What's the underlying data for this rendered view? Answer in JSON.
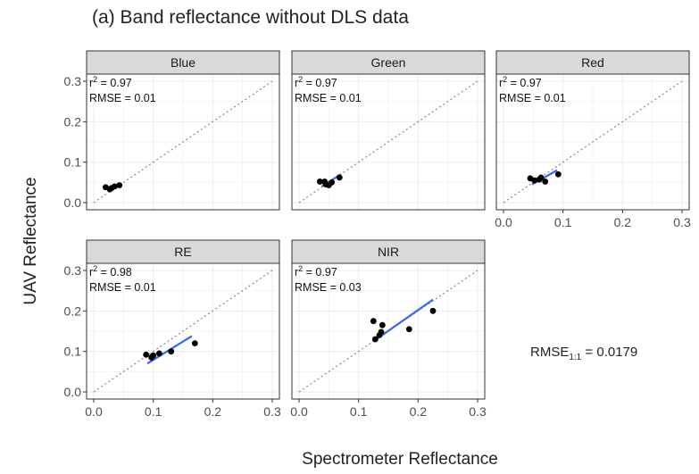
{
  "figure": {
    "title": "(a) Band reflectance without DLS data",
    "xlabel": "Spectrometer Reflectance",
    "ylabel": "UAV Reflectance",
    "overall_rmse_label": "RMSE",
    "overall_rmse_subscript": "1:1",
    "overall_rmse_value": "= 0.0179",
    "colors": {
      "strip": "#d9d9d9",
      "panel_border": "#333333",
      "grid": "#ebebeb",
      "points": "#000000",
      "fit_line": "#3366ff",
      "identity_line": "#888888",
      "axis_text": "#4d4d4d"
    }
  },
  "chart_data": {
    "type": "scatter",
    "facets": true,
    "xlim": [
      0,
      0.3
    ],
    "ylim": [
      0,
      0.3
    ],
    "x_ticks": [
      "0.0",
      "0.1",
      "0.2",
      "0.3"
    ],
    "y_ticks": [
      "0.0",
      "0.1",
      "0.2",
      "0.3"
    ],
    "grid": true,
    "reference_line": "1:1 dotted",
    "panels": [
      {
        "name": "Blue",
        "r2_label": "r",
        "r2_sup": "2",
        "r2_value": "= 0.97",
        "rmse": "RMSE = 0.01",
        "points": [
          [
            0.02,
            0.038
          ],
          [
            0.027,
            0.033
          ],
          [
            0.03,
            0.036
          ],
          [
            0.035,
            0.04
          ],
          [
            0.043,
            0.043
          ]
        ],
        "fit": [
          [
            0.025,
            0.03
          ],
          [
            0.048,
            0.045
          ]
        ]
      },
      {
        "name": "Green",
        "r2_label": "r",
        "r2_sup": "2",
        "r2_value": "= 0.97",
        "rmse": "RMSE = 0.01",
        "points": [
          [
            0.035,
            0.052
          ],
          [
            0.043,
            0.052
          ],
          [
            0.045,
            0.045
          ],
          [
            0.05,
            0.043
          ],
          [
            0.055,
            0.05
          ],
          [
            0.068,
            0.062
          ]
        ],
        "fit": [
          [
            0.038,
            0.04
          ],
          [
            0.07,
            0.07
          ]
        ]
      },
      {
        "name": "Red",
        "r2_label": "r",
        "r2_sup": "2",
        "r2_value": "= 0.97",
        "rmse": "RMSE = 0.01",
        "points": [
          [
            0.045,
            0.06
          ],
          [
            0.052,
            0.055
          ],
          [
            0.06,
            0.057
          ],
          [
            0.063,
            0.062
          ],
          [
            0.07,
            0.052
          ],
          [
            0.092,
            0.07
          ]
        ],
        "fit": [
          [
            0.048,
            0.045
          ],
          [
            0.09,
            0.08
          ]
        ]
      },
      {
        "name": "RE",
        "r2_label": "r",
        "r2_sup": "2",
        "r2_value": "= 0.98",
        "rmse": "RMSE = 0.01",
        "points": [
          [
            0.088,
            0.092
          ],
          [
            0.097,
            0.085
          ],
          [
            0.1,
            0.09
          ],
          [
            0.11,
            0.095
          ],
          [
            0.13,
            0.1
          ],
          [
            0.17,
            0.12
          ]
        ],
        "fit": [
          [
            0.09,
            0.07
          ],
          [
            0.165,
            0.138
          ]
        ]
      },
      {
        "name": "NIR",
        "r2_label": "r",
        "r2_sup": "2",
        "r2_value": "= 0.97",
        "rmse": "RMSE = 0.03",
        "points": [
          [
            0.125,
            0.175
          ],
          [
            0.128,
            0.13
          ],
          [
            0.135,
            0.14
          ],
          [
            0.138,
            0.148
          ],
          [
            0.14,
            0.165
          ],
          [
            0.185,
            0.155
          ],
          [
            0.225,
            0.2
          ]
        ],
        "fit": [
          [
            0.125,
            0.125
          ],
          [
            0.225,
            0.228
          ]
        ]
      }
    ]
  }
}
